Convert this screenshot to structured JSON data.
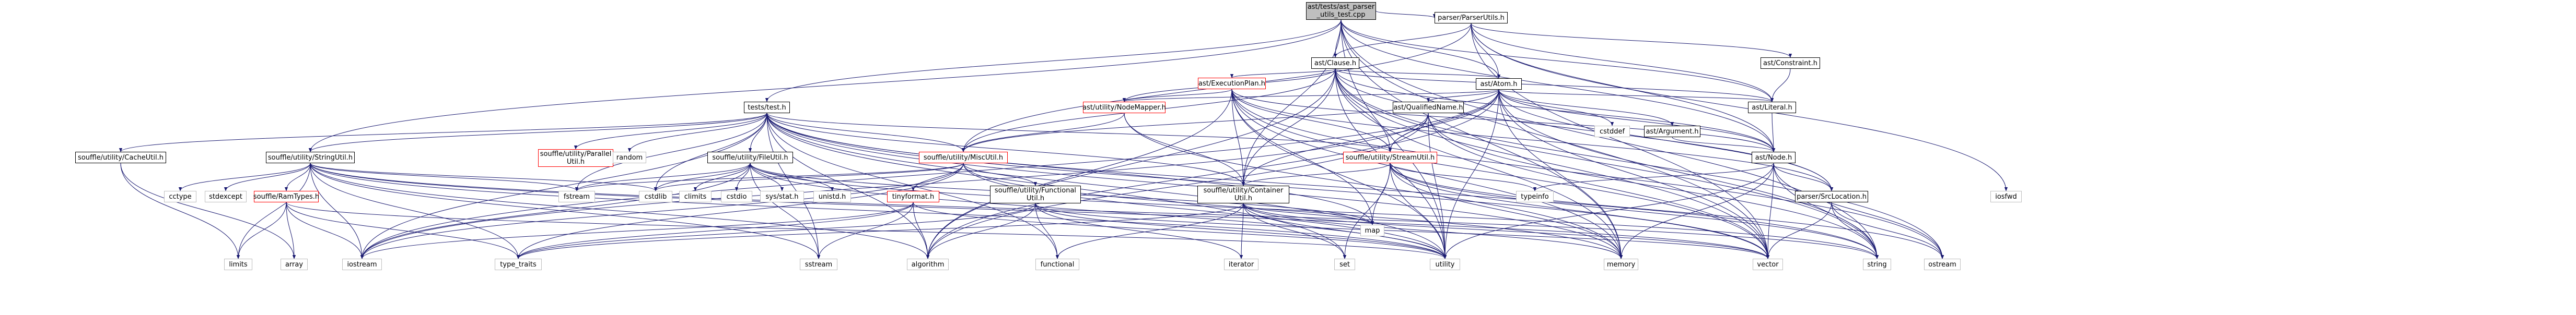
{
  "page": {
    "title": "ast/tests/ast_parser_utils_test.cpp"
  },
  "colors": {
    "edge": "#191970",
    "root_fill": "#bfbfbf",
    "local_border": "#000000",
    "missing_border": "#ff0000",
    "system_border": "#bfbfbf"
  },
  "nodes": {
    "root": {
      "label": [
        "ast/tests/ast_parser",
        "_utils_test.cpp"
      ],
      "kind": "root"
    },
    "parserUtils": {
      "label": [
        "parser/ParserUtils.h"
      ],
      "kind": "local"
    },
    "clause": {
      "label": [
        "ast/Clause.h"
      ],
      "kind": "local"
    },
    "constraint": {
      "label": [
        "ast/Constraint.h"
      ],
      "kind": "local"
    },
    "atom": {
      "label": [
        "ast/Atom.h"
      ],
      "kind": "local"
    },
    "execPlan": {
      "label": [
        "ast/ExecutionPlan.h"
      ],
      "kind": "missing"
    },
    "nodeMapper": {
      "label": [
        "ast/utility/NodeMapper.h"
      ],
      "kind": "missing"
    },
    "literal": {
      "label": [
        "ast/Literal.h"
      ],
      "kind": "local"
    },
    "argument": {
      "label": [
        "ast/Argument.h"
      ],
      "kind": "local"
    },
    "qualName": {
      "label": [
        "ast/QualifiedName.h"
      ],
      "kind": "local"
    },
    "astNode": {
      "label": [
        "ast/Node.h"
      ],
      "kind": "local"
    },
    "srcLoc": {
      "label": [
        "parser/SrcLocation.h"
      ],
      "kind": "local"
    },
    "testsTest": {
      "label": [
        "tests/test.h"
      ],
      "kind": "local"
    },
    "miscUtil": {
      "label": [
        "souffle/utility/MiscUtil.h"
      ],
      "kind": "missing"
    },
    "streamUtil": {
      "label": [
        "souffle/utility/StreamUtil.h"
      ],
      "kind": "missing"
    },
    "containerUtil": {
      "label": [
        "souffle/utility/Container",
        "Util.h"
      ],
      "kind": "local"
    },
    "functionalUtil": {
      "label": [
        "souffle/utility/Functional",
        "Util.h"
      ],
      "kind": "local"
    },
    "tinyformat": {
      "label": [
        "tinyformat.h"
      ],
      "kind": "missing"
    },
    "cacheUtil": {
      "label": [
        "souffle/utility/CacheUtil.h"
      ],
      "kind": "local"
    },
    "stringUtil": {
      "label": [
        "souffle/utility/StringUtil.h"
      ],
      "kind": "local"
    },
    "ramTypes": {
      "label": [
        "souffle/RamTypes.h"
      ],
      "kind": "missing"
    },
    "parallelUtil": {
      "label": [
        "souffle/utility/Parallel",
        "Util.h"
      ],
      "kind": "missing"
    },
    "fileUtil": {
      "label": [
        "souffle/utility/FileUtil.h"
      ],
      "kind": "local"
    },
    "cstddef": {
      "label": [
        "cstddef"
      ],
      "kind": "system"
    },
    "cctype": {
      "label": [
        "cctype"
      ],
      "kind": "system"
    },
    "stdexcept": {
      "label": [
        "stdexcept"
      ],
      "kind": "system"
    },
    "limits": {
      "label": [
        "limits"
      ],
      "kind": "system"
    },
    "array": {
      "label": [
        "array"
      ],
      "kind": "system"
    },
    "iostream": {
      "label": [
        "iostream"
      ],
      "kind": "system"
    },
    "type_traits": {
      "label": [
        "type_traits"
      ],
      "kind": "system"
    },
    "sstream": {
      "label": [
        "sstream"
      ],
      "kind": "system"
    },
    "fstream": {
      "label": [
        "fstream"
      ],
      "kind": "system"
    },
    "cstdlib": {
      "label": [
        "cstdlib"
      ],
      "kind": "system"
    },
    "climits": {
      "label": [
        "climits"
      ],
      "kind": "system"
    },
    "cstdio": {
      "label": [
        "cstdio"
      ],
      "kind": "system"
    },
    "sysstat": {
      "label": [
        "sys/stat.h"
      ],
      "kind": "system"
    },
    "unistd": {
      "label": [
        "unistd.h"
      ],
      "kind": "system"
    },
    "random": {
      "label": [
        "random"
      ],
      "kind": "system"
    },
    "algorithm": {
      "label": [
        "algorithm"
      ],
      "kind": "system"
    },
    "functional": {
      "label": [
        "functional"
      ],
      "kind": "system"
    },
    "iterator": {
      "label": [
        "iterator"
      ],
      "kind": "system"
    },
    "map": {
      "label": [
        "map"
      ],
      "kind": "system"
    },
    "set": {
      "label": [
        "set"
      ],
      "kind": "system"
    },
    "typeinfo": {
      "label": [
        "typeinfo"
      ],
      "kind": "system"
    },
    "utility": {
      "label": [
        "utility"
      ],
      "kind": "system"
    },
    "memory": {
      "label": [
        "memory"
      ],
      "kind": "system"
    },
    "vector": {
      "label": [
        "vector"
      ],
      "kind": "system"
    },
    "string": {
      "label": [
        "string"
      ],
      "kind": "system"
    },
    "ostream": {
      "label": [
        "ostream"
      ],
      "kind": "system"
    },
    "iosfwd": {
      "label": [
        "iosfwd"
      ],
      "kind": "system"
    }
  },
  "edges": [
    [
      "root",
      "parserUtils"
    ],
    [
      "root",
      "clause"
    ],
    [
      "root",
      "atom"
    ],
    [
      "root",
      "testsTest"
    ],
    [
      "root",
      "stringUtil"
    ],
    [
      "root",
      "containerUtil"
    ],
    [
      "root",
      "utility"
    ],
    [
      "root",
      "memory"
    ],
    [
      "root",
      "vector"
    ],
    [
      "root",
      "string"
    ],
    [
      "root",
      "astNode"
    ],
    [
      "root",
      "literal"
    ],
    [
      "parserUtils",
      "clause"
    ],
    [
      "parserUtils",
      "constraint"
    ],
    [
      "parserUtils",
      "atom"
    ],
    [
      "parserUtils",
      "literal"
    ],
    [
      "parserUtils",
      "astNode"
    ],
    [
      "parserUtils",
      "miscUtil"
    ],
    [
      "parserUtils",
      "vector"
    ],
    [
      "parserUtils",
      "iosfwd"
    ],
    [
      "constraint",
      "literal"
    ],
    [
      "clause",
      "atom"
    ],
    [
      "clause",
      "execPlan"
    ],
    [
      "clause",
      "nodeMapper"
    ],
    [
      "clause",
      "literal"
    ],
    [
      "clause",
      "astNode"
    ],
    [
      "clause",
      "srcLoc"
    ],
    [
      "clause",
      "containerUtil"
    ],
    [
      "clause",
      "miscUtil"
    ],
    [
      "clause",
      "streamUtil"
    ],
    [
      "clause",
      "algorithm"
    ],
    [
      "clause",
      "memory"
    ],
    [
      "clause",
      "ostream"
    ],
    [
      "clause",
      "string"
    ],
    [
      "clause",
      "utility"
    ],
    [
      "clause",
      "vector"
    ],
    [
      "atom",
      "argument"
    ],
    [
      "atom",
      "literal"
    ],
    [
      "atom",
      "astNode"
    ],
    [
      "atom",
      "qualName"
    ],
    [
      "atom",
      "nodeMapper"
    ],
    [
      "atom",
      "srcLoc"
    ],
    [
      "atom",
      "containerUtil"
    ],
    [
      "atom",
      "miscUtil"
    ],
    [
      "atom",
      "streamUtil"
    ],
    [
      "atom",
      "algorithm"
    ],
    [
      "atom",
      "cstddef"
    ],
    [
      "atom",
      "iostream"
    ],
    [
      "atom",
      "memory"
    ],
    [
      "atom",
      "string"
    ],
    [
      "atom",
      "utility"
    ],
    [
      "atom",
      "vector"
    ],
    [
      "execPlan",
      "astNode"
    ],
    [
      "execPlan",
      "nodeMapper"
    ],
    [
      "execPlan",
      "srcLoc"
    ],
    [
      "execPlan",
      "containerUtil"
    ],
    [
      "execPlan",
      "streamUtil"
    ],
    [
      "execPlan",
      "map"
    ],
    [
      "execPlan",
      "memory"
    ],
    [
      "execPlan",
      "ostream"
    ],
    [
      "execPlan",
      "utility"
    ],
    [
      "execPlan",
      "vector"
    ],
    [
      "execPlan",
      "algorithm"
    ],
    [
      "nodeMapper",
      "containerUtil"
    ],
    [
      "nodeMapper",
      "miscUtil"
    ],
    [
      "nodeMapper",
      "memory"
    ],
    [
      "literal",
      "astNode"
    ],
    [
      "argument",
      "astNode"
    ],
    [
      "qualName",
      "streamUtil"
    ],
    [
      "qualName",
      "algorithm"
    ],
    [
      "qualName",
      "iostream"
    ],
    [
      "qualName",
      "string"
    ],
    [
      "qualName",
      "utility"
    ],
    [
      "qualName",
      "vector"
    ],
    [
      "astNode",
      "srcLoc"
    ],
    [
      "astNode",
      "typeinfo"
    ],
    [
      "astNode",
      "memory"
    ],
    [
      "astNode",
      "ostream"
    ],
    [
      "astNode",
      "string"
    ],
    [
      "astNode",
      "utility"
    ],
    [
      "astNode",
      "vector"
    ],
    [
      "srcLoc",
      "ostream"
    ],
    [
      "srcLoc",
      "string"
    ],
    [
      "srcLoc",
      "vector"
    ],
    [
      "testsTest",
      "miscUtil"
    ],
    [
      "testsTest",
      "streamUtil"
    ],
    [
      "testsTest",
      "stringUtil"
    ],
    [
      "testsTest",
      "fileUtil"
    ],
    [
      "testsTest",
      "cacheUtil"
    ],
    [
      "testsTest",
      "parallelUtil"
    ],
    [
      "testsTest",
      "containerUtil"
    ],
    [
      "testsTest",
      "random"
    ],
    [
      "testsTest",
      "iostream"
    ],
    [
      "testsTest",
      "sstream"
    ],
    [
      "testsTest",
      "fstream"
    ],
    [
      "testsTest",
      "map"
    ],
    [
      "testsTest",
      "set"
    ],
    [
      "testsTest",
      "string"
    ],
    [
      "testsTest",
      "vector"
    ],
    [
      "testsTest",
      "utility"
    ],
    [
      "testsTest",
      "algorithm"
    ],
    [
      "testsTest",
      "memory"
    ],
    [
      "testsTest",
      "functional"
    ],
    [
      "testsTest",
      "cstdlib"
    ],
    [
      "miscUtil",
      "tinyformat"
    ],
    [
      "miscUtil",
      "functionalUtil"
    ],
    [
      "miscUtil",
      "cstdlib"
    ],
    [
      "miscUtil",
      "fstream"
    ],
    [
      "miscUtil",
      "iostream"
    ],
    [
      "miscUtil",
      "memory"
    ],
    [
      "miscUtil",
      "utility"
    ],
    [
      "miscUtil",
      "type_traits"
    ],
    [
      "streamUtil",
      "containerUtil"
    ],
    [
      "streamUtil",
      "map"
    ],
    [
      "streamUtil",
      "memory"
    ],
    [
      "streamUtil",
      "ostream"
    ],
    [
      "streamUtil",
      "set"
    ],
    [
      "streamUtil",
      "string"
    ],
    [
      "streamUtil",
      "utility"
    ],
    [
      "streamUtil",
      "vector"
    ],
    [
      "streamUtil",
      "typeinfo"
    ],
    [
      "containerUtil",
      "functional"
    ],
    [
      "containerUtil",
      "iterator"
    ],
    [
      "containerUtil",
      "map"
    ],
    [
      "containerUtil",
      "memory"
    ],
    [
      "containerUtil",
      "set"
    ],
    [
      "containerUtil",
      "type_traits"
    ],
    [
      "containerUtil",
      "utility"
    ],
    [
      "containerUtil",
      "vector"
    ],
    [
      "functionalUtil",
      "algorithm"
    ],
    [
      "functionalUtil",
      "functional"
    ],
    [
      "functionalUtil",
      "iterator"
    ],
    [
      "functionalUtil",
      "type_traits"
    ],
    [
      "functionalUtil",
      "utility"
    ],
    [
      "functionalUtil",
      "vector"
    ],
    [
      "tinyformat",
      "algorithm"
    ],
    [
      "tinyformat",
      "iostream"
    ],
    [
      "tinyformat",
      "sstream"
    ],
    [
      "tinyformat",
      "type_traits"
    ],
    [
      "tinyformat",
      "utility"
    ],
    [
      "cacheUtil",
      "limits"
    ],
    [
      "cacheUtil",
      "array"
    ],
    [
      "stringUtil",
      "ramTypes"
    ],
    [
      "stringUtil",
      "algorithm"
    ],
    [
      "stringUtil",
      "cctype"
    ],
    [
      "stringUtil",
      "cstdlib"
    ],
    [
      "stringUtil",
      "fstream"
    ],
    [
      "stringUtil",
      "limits"
    ],
    [
      "stringUtil",
      "sstream"
    ],
    [
      "stringUtil",
      "stdexcept"
    ],
    [
      "stringUtil",
      "string"
    ],
    [
      "stringUtil",
      "type_traits"
    ],
    [
      "stringUtil",
      "vector"
    ],
    [
      "stringUtil",
      "iostream"
    ],
    [
      "stringUtil",
      "utility"
    ],
    [
      "ramTypes",
      "limits"
    ],
    [
      "ramTypes",
      "type_traits"
    ],
    [
      "ramTypes",
      "iostream"
    ],
    [
      "ramTypes",
      "array"
    ],
    [
      "ramTypes",
      "utility"
    ],
    [
      "fileUtil",
      "climits"
    ],
    [
      "fileUtil",
      "cstdio"
    ],
    [
      "fileUtil",
      "cstdlib"
    ],
    [
      "fileUtil",
      "fstream"
    ],
    [
      "fileUtil",
      "map"
    ],
    [
      "fileUtil",
      "sstream"
    ],
    [
      "fileUtil",
      "string"
    ],
    [
      "fileUtil",
      "utility"
    ],
    [
      "fileUtil",
      "sysstat"
    ],
    [
      "fileUtil",
      "unistd"
    ],
    [
      "fileUtil",
      "iostream"
    ]
  ]
}
